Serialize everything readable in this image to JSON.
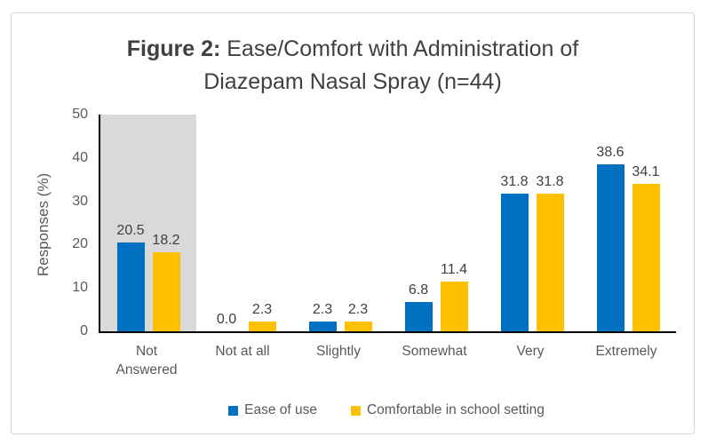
{
  "figure": {
    "title_prefix": "Figure 2:",
    "title_rest": " Ease/Comfort with Administration of",
    "title_line2": "Diazepam Nasal Spray (n=44)"
  },
  "chart_data": {
    "type": "bar",
    "title": "Figure 2: Ease/Comfort with Administration of Diazepam Nasal Spray (n=44)",
    "ylabel": "Responses (%)",
    "xlabel": "",
    "ylim": [
      0,
      50
    ],
    "yticks": [
      0,
      10,
      20,
      30,
      40,
      50
    ],
    "grid": false,
    "legend_position": "bottom",
    "data_labels": true,
    "categories": [
      "Not Answered",
      "Not at all",
      "Slightly",
      "Somewhat",
      "Very",
      "Extremely"
    ],
    "series": [
      {
        "name": "Ease of use",
        "color": "#0070C0",
        "values": [
          20.5,
          0.0,
          2.3,
          6.8,
          31.8,
          38.6
        ]
      },
      {
        "name": "Comfortable in school setting",
        "color": "#FFC000",
        "values": [
          18.2,
          2.3,
          2.3,
          11.4,
          31.8,
          34.1
        ]
      }
    ],
    "highlight": {
      "category": "Not Answered",
      "color": "#D9D9D9"
    },
    "colors": {
      "axis_line": "#000000",
      "title_text": "#404040",
      "tick_text": "#595959",
      "data_label_text": "#404040",
      "frame_border": "#D6D6D6"
    }
  }
}
